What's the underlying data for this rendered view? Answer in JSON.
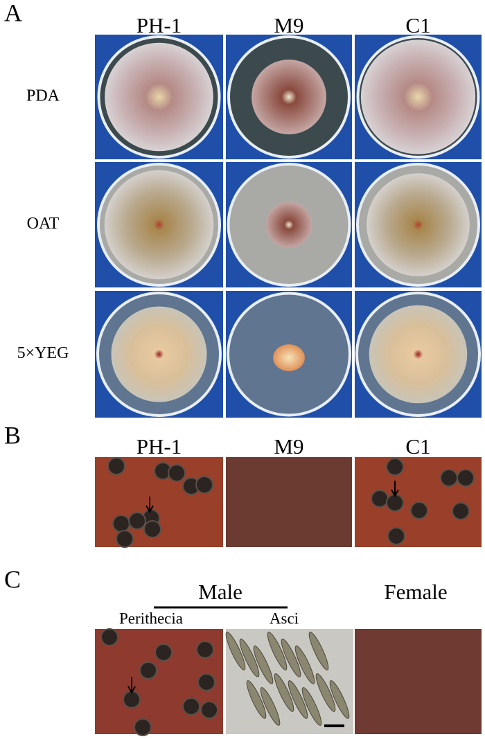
{
  "panel_a": {
    "label": "A",
    "columns": [
      "PH-1",
      "M9",
      "C1"
    ],
    "rows": [
      "PDA",
      "OAT",
      "5×YEG"
    ]
  },
  "panel_b": {
    "label": "B",
    "columns": [
      "PH-1",
      "M9",
      "C1"
    ]
  },
  "panel_c": {
    "label": "C",
    "group": "Male",
    "subcolumns": [
      "Perithecia",
      "Asci"
    ],
    "female": "Female"
  }
}
